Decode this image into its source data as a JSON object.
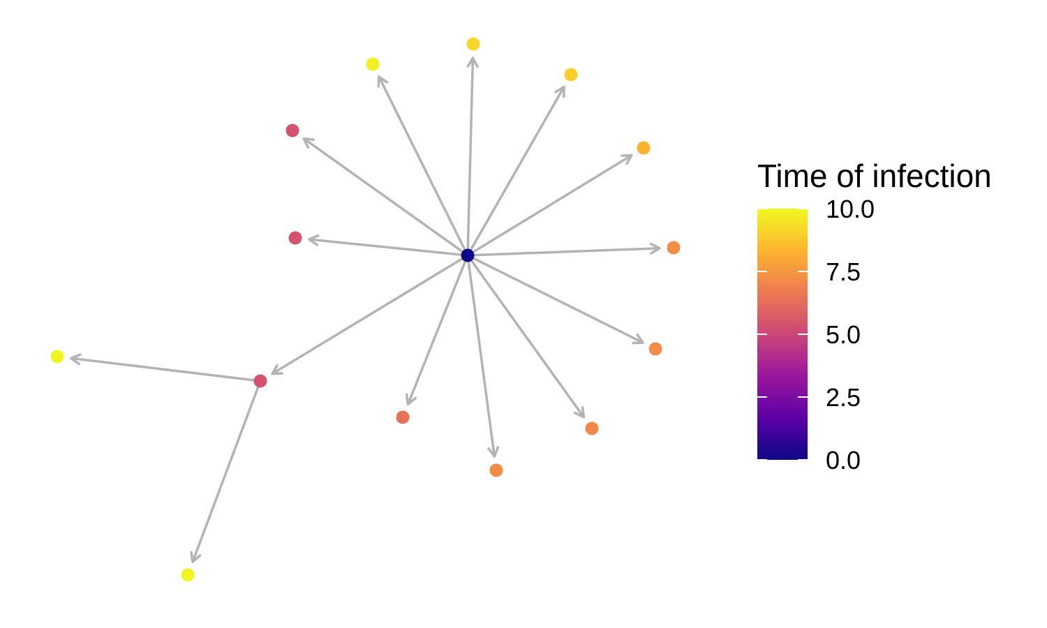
{
  "legend": {
    "title": "Time of infection",
    "min": 0,
    "max": 10,
    "ticks": [
      {
        "value": 10.0,
        "label": "10.0"
      },
      {
        "value": 7.5,
        "label": "7.5"
      },
      {
        "value": 5.0,
        "label": "5.0"
      },
      {
        "value": 2.5,
        "label": "2.5"
      },
      {
        "value": 0.0,
        "label": "0.0"
      }
    ],
    "colors": [
      "#0d0887",
      "#5c01a6",
      "#9c179e",
      "#cc4778",
      "#ed7953",
      "#fdb42f",
      "#f0f921"
    ]
  },
  "colors": {
    "edge": "#b3b3b3"
  },
  "network": {
    "nodes": [
      {
        "id": "root",
        "time": 0.0
      },
      {
        "id": "n1",
        "time": 9.8
      },
      {
        "id": "n2",
        "time": 9.2
      },
      {
        "id": "n3",
        "time": 9.0
      },
      {
        "id": "n4",
        "time": 8.3
      },
      {
        "id": "n5",
        "time": 7.3
      },
      {
        "id": "n6",
        "time": 7.2
      },
      {
        "id": "n7",
        "time": 7.1
      },
      {
        "id": "n8",
        "time": 7.2
      },
      {
        "id": "n9",
        "time": 6.4
      },
      {
        "id": "n10",
        "time": 5.4
      },
      {
        "id": "n11",
        "time": 5.4
      },
      {
        "id": "n12",
        "time": 5.4
      },
      {
        "id": "n13",
        "time": 9.9
      },
      {
        "id": "n14",
        "time": 9.9
      }
    ],
    "edges": [
      {
        "from": "root",
        "to": "n1"
      },
      {
        "from": "root",
        "to": "n2"
      },
      {
        "from": "root",
        "to": "n3"
      },
      {
        "from": "root",
        "to": "n4"
      },
      {
        "from": "root",
        "to": "n5"
      },
      {
        "from": "root",
        "to": "n6"
      },
      {
        "from": "root",
        "to": "n7"
      },
      {
        "from": "root",
        "to": "n8"
      },
      {
        "from": "root",
        "to": "n9"
      },
      {
        "from": "root",
        "to": "n10"
      },
      {
        "from": "root",
        "to": "n11"
      },
      {
        "from": "root",
        "to": "n12"
      },
      {
        "from": "n12",
        "to": "n13"
      },
      {
        "from": "n12",
        "to": "n14"
      }
    ]
  }
}
